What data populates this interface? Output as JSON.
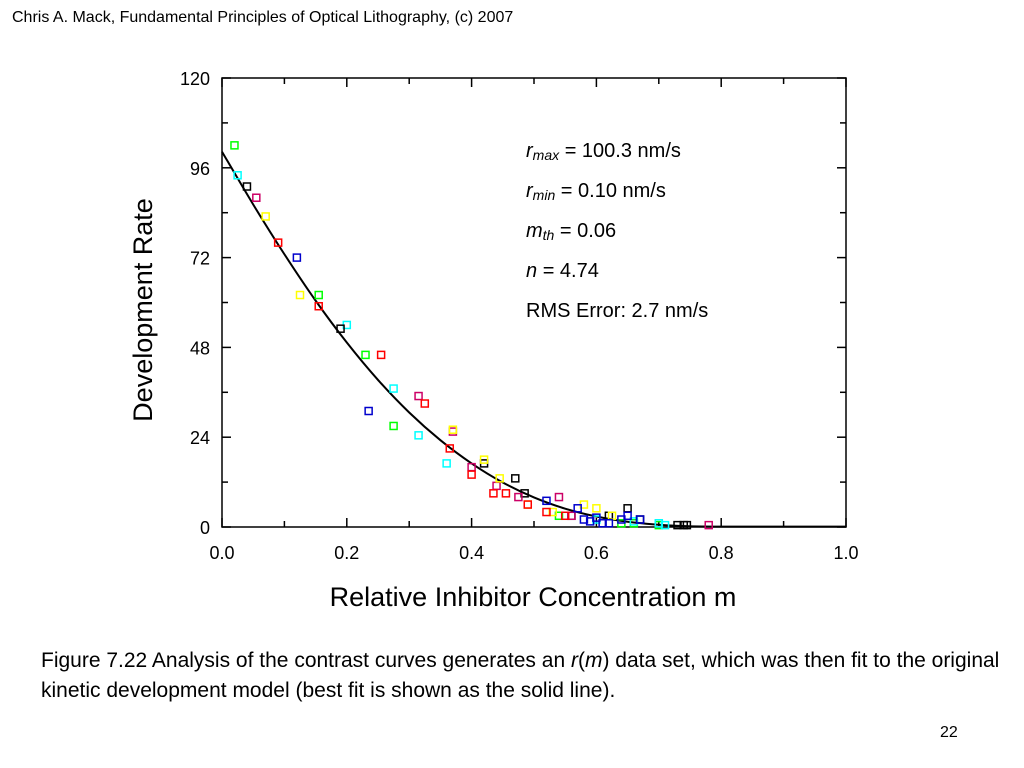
{
  "header": {
    "credit": "Chris A. Mack, Fundamental Principles of Optical Lithography, (c) 2007"
  },
  "fit_parameters": {
    "rmax": {
      "symbol": "r",
      "subscript": "max",
      "value": "=  100.3 nm/s"
    },
    "rmin": {
      "symbol": "r",
      "subscript": "min",
      "value": "=  0.10 nm/s"
    },
    "mth": {
      "symbol": "m",
      "subscript": "th",
      "value": "=  0.06"
    },
    "n": {
      "symbol": "n",
      "value": "=  4.74"
    },
    "rms": {
      "label": "RMS Error:  2.7 nm/s"
    }
  },
  "caption": {
    "part1": "Figure 7.22  Analysis of the contrast curves generates an ",
    "r": "r",
    "paren_open": "(",
    "m": "m",
    "part2": ") data set, which was then fit to the original kinetic development model (best fit is shown as the solid line)."
  },
  "page_number": "22",
  "chart_data": {
    "type": "scatter",
    "ylabel": "Development Rate",
    "xlabel": "Relative Inhibitor Concentration m",
    "xlim": [
      0,
      1.0
    ],
    "ylim": [
      0,
      120
    ],
    "xticks": [
      "0.0",
      "0.2",
      "0.4",
      "0.6",
      "0.8",
      "1.0"
    ],
    "yticks": [
      "0",
      "24",
      "48",
      "72",
      "96",
      "120"
    ],
    "fit_line": {
      "model": "kinetic development model",
      "x": [
        0.0,
        0.05,
        0.1,
        0.15,
        0.2,
        0.25,
        0.3,
        0.35,
        0.4,
        0.45,
        0.5,
        0.55,
        0.6,
        0.65,
        0.7,
        0.75,
        0.8,
        0.9,
        1.0
      ],
      "y": [
        100.3,
        86.2,
        72.9,
        60.5,
        49.3,
        39.3,
        30.6,
        23.2,
        17.0,
        11.9,
        7.9,
        4.9,
        2.8,
        1.4,
        0.6,
        0.2,
        0.1,
        0.1,
        0.1
      ]
    },
    "series": [
      {
        "color": "#00ff00",
        "points": [
          [
            0.02,
            102
          ],
          [
            0.155,
            62
          ],
          [
            0.23,
            46
          ],
          [
            0.275,
            27
          ],
          [
            0.54,
            3
          ],
          [
            0.64,
            1
          ],
          [
            0.66,
            1
          ],
          [
            0.7,
            0.5
          ]
        ]
      },
      {
        "color": "#00ffff",
        "points": [
          [
            0.025,
            94
          ],
          [
            0.2,
            54
          ],
          [
            0.275,
            37
          ],
          [
            0.315,
            24.5
          ],
          [
            0.36,
            17
          ],
          [
            0.6,
            2
          ],
          [
            0.66,
            1.5
          ],
          [
            0.7,
            1
          ],
          [
            0.71,
            0.5
          ]
        ]
      },
      {
        "color": "#000000",
        "points": [
          [
            0.04,
            91
          ],
          [
            0.19,
            53
          ],
          [
            0.42,
            17
          ],
          [
            0.47,
            13
          ],
          [
            0.485,
            9
          ],
          [
            0.56,
            3
          ],
          [
            0.62,
            3
          ],
          [
            0.65,
            5
          ],
          [
            0.67,
            2
          ],
          [
            0.73,
            0.5
          ],
          [
            0.74,
            0.5
          ],
          [
            0.745,
            0.5
          ]
        ]
      },
      {
        "color": "#cc0066",
        "points": [
          [
            0.055,
            88
          ],
          [
            0.315,
            35
          ],
          [
            0.37,
            25.5
          ],
          [
            0.4,
            16
          ],
          [
            0.44,
            11
          ],
          [
            0.475,
            8
          ],
          [
            0.54,
            8
          ],
          [
            0.56,
            3
          ],
          [
            0.78,
            0.5
          ]
        ]
      },
      {
        "color": "#ffff00",
        "points": [
          [
            0.07,
            83
          ],
          [
            0.125,
            62
          ],
          [
            0.37,
            26
          ],
          [
            0.42,
            18
          ],
          [
            0.445,
            13
          ],
          [
            0.49,
            6
          ],
          [
            0.53,
            4
          ],
          [
            0.58,
            6
          ],
          [
            0.6,
            5
          ],
          [
            0.625,
            3
          ]
        ]
      },
      {
        "color": "#ff0000",
        "points": [
          [
            0.09,
            76
          ],
          [
            0.155,
            59
          ],
          [
            0.255,
            46
          ],
          [
            0.325,
            33
          ],
          [
            0.365,
            21
          ],
          [
            0.4,
            14
          ],
          [
            0.435,
            9
          ],
          [
            0.455,
            9
          ],
          [
            0.49,
            6
          ],
          [
            0.52,
            4
          ],
          [
            0.55,
            3
          ]
        ]
      },
      {
        "color": "#0000cc",
        "points": [
          [
            0.12,
            72
          ],
          [
            0.235,
            31
          ],
          [
            0.52,
            7
          ],
          [
            0.57,
            5
          ],
          [
            0.58,
            2
          ],
          [
            0.59,
            1.5
          ],
          [
            0.6,
            2.5
          ],
          [
            0.61,
            1
          ],
          [
            0.62,
            1
          ],
          [
            0.64,
            2
          ],
          [
            0.65,
            3
          ],
          [
            0.67,
            2
          ]
        ]
      }
    ]
  }
}
